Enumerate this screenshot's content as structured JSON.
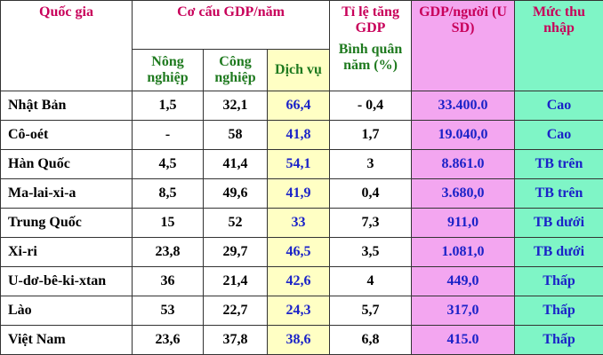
{
  "header": {
    "country": "Quốc gia",
    "gdp_structure": "Cơ cấu GDP/năm",
    "agriculture": "Nông nghiệp",
    "industry": "Công nghiệp",
    "services": "Dịch vụ",
    "growth_title": "Tỉ lệ tăng GDP",
    "growth_sub": "Bình quân năm (%)",
    "gdp_per_capita": "GDP/người (USD)",
    "income": "Mức thu nhập"
  },
  "table": {
    "rows": [
      [
        "Nhật Bản",
        "1,5",
        "32,1",
        "66,4",
        "- 0,4",
        "33.400.0",
        "Cao"
      ],
      [
        "Cô-oét",
        "-",
        "58",
        "41,8",
        "1,7",
        "19.040,0",
        "Cao"
      ],
      [
        "Hàn Quốc",
        "4,5",
        "41,4",
        "54,1",
        "3",
        "8.861.0",
        "TB trên"
      ],
      [
        "Ma-lai-xi-a",
        "8,5",
        "49,6",
        "41,9",
        "0,4",
        "3.680,0",
        "TB trên"
      ],
      [
        "Trung Quốc",
        "15",
        "52",
        "33",
        "7,3",
        "911,0",
        "TB dưới"
      ],
      [
        "Xi-ri",
        "23,8",
        "29,7",
        "46,5",
        "3,5",
        "1.081,0",
        "TB dưới"
      ],
      [
        "U-dơ-bê-ki-xtan",
        "36",
        "21,4",
        "42,6",
        "4",
        "449,0",
        "Thấp"
      ],
      [
        "Lào",
        "53",
        "22,7",
        "24,3",
        "5,7",
        "317,0",
        "Thấp"
      ],
      [
        "Việt Nam",
        "23,6",
        "37,8",
        "38,6",
        "6,8",
        "415.0",
        "Thấp"
      ]
    ]
  }
}
